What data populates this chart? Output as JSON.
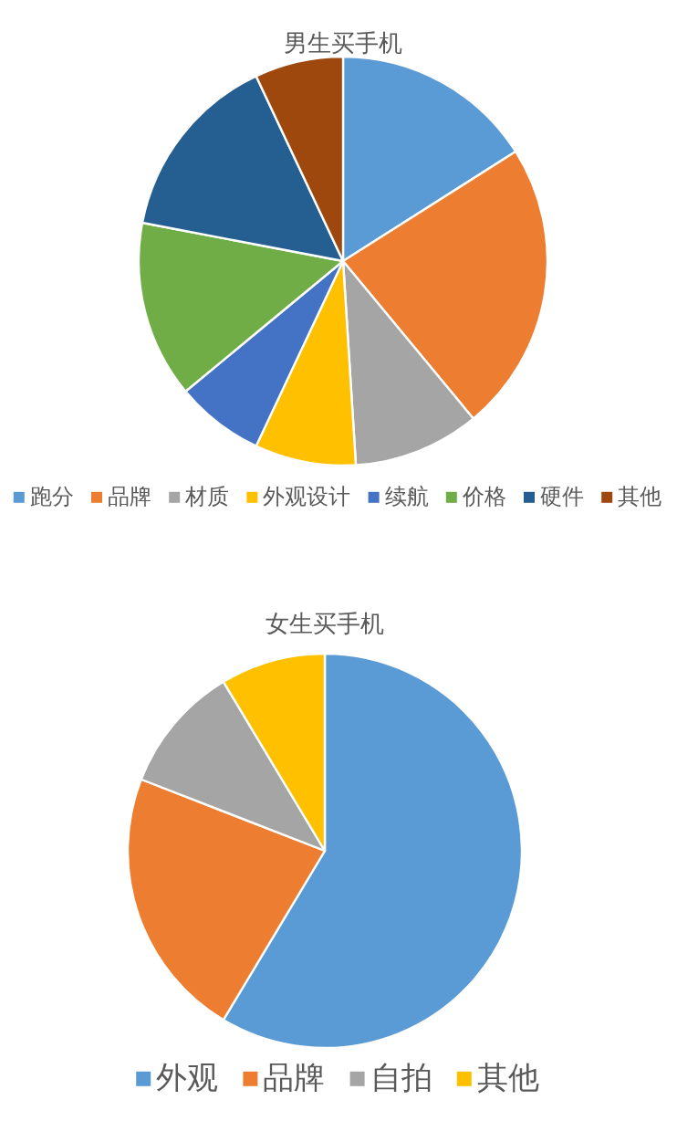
{
  "chart_data": [
    {
      "type": "pie",
      "title": "男生买手机",
      "categories": [
        "跑分",
        "品牌",
        "材质",
        "外观设计",
        "续航",
        "价格",
        "硬件",
        "其他"
      ],
      "values": [
        16,
        23,
        10,
        8,
        7,
        14,
        15,
        7
      ],
      "colors": [
        "#5b9bd5",
        "#ed7d31",
        "#a5a5a5",
        "#ffc000",
        "#4472c4",
        "#70ad47",
        "#255e91",
        "#9e480e"
      ],
      "legend": "bottom"
    },
    {
      "type": "pie",
      "title": "女生买手机",
      "categories": [
        "外观",
        "品牌",
        "自拍",
        "其他"
      ],
      "values": [
        58.6,
        22.3,
        10.5,
        8.6
      ],
      "colors": [
        "#5b9bd5",
        "#ed7d31",
        "#a5a5a5",
        "#ffc000"
      ],
      "legend": "bottom"
    }
  ]
}
